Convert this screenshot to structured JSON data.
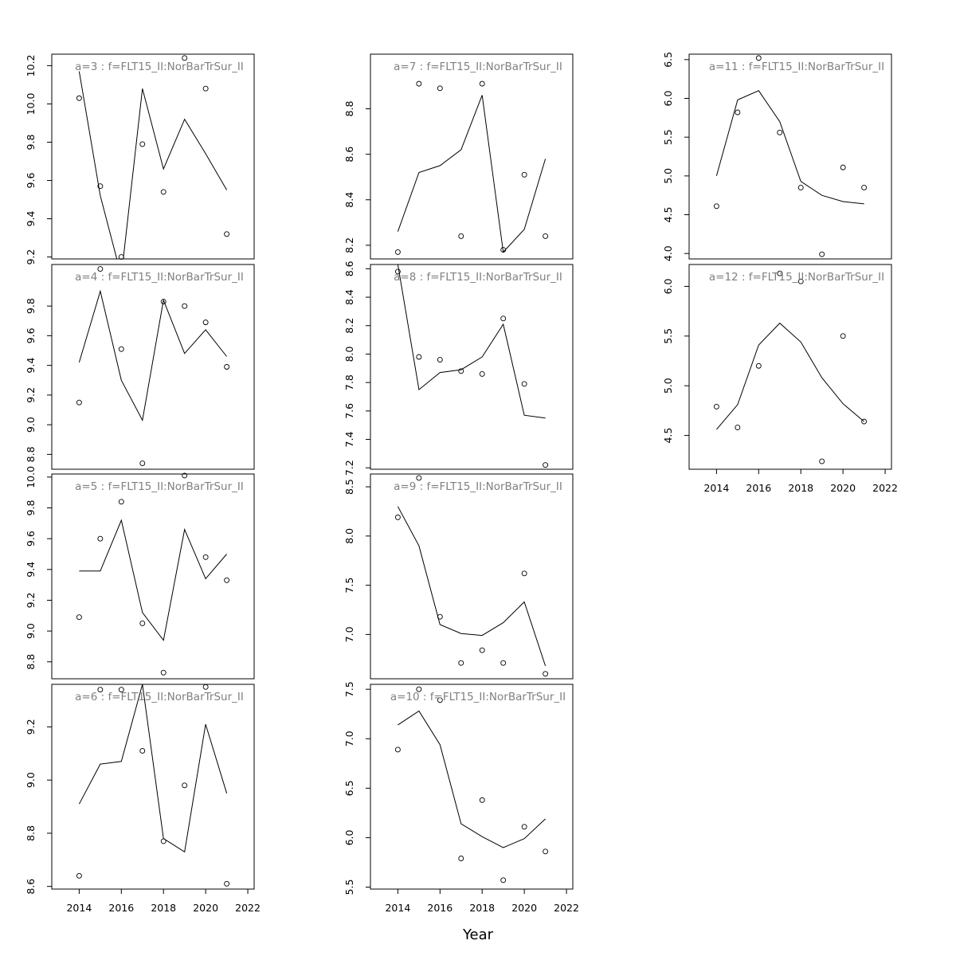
{
  "chart_data": {
    "type": "line",
    "xlabel": "Year",
    "x_ticks": [
      2014,
      2016,
      2018,
      2020,
      2022
    ],
    "xlim": [
      2012.7,
      2022.3
    ],
    "years": [
      2014,
      2015,
      2016,
      2017,
      2018,
      2019,
      2020,
      2021
    ],
    "panels": [
      {
        "title": "a=3  :  f=FLT15_II:NorBarTrSur_II",
        "y_ticks": [
          "9.2",
          "9.4",
          "9.6",
          "9.8",
          "10.0",
          "10.2"
        ],
        "ylim": [
          9.19,
          10.26
        ],
        "fitted": [
          10.17,
          9.52,
          9.1,
          10.08,
          9.66,
          9.92,
          9.74,
          9.55
        ],
        "observed": [
          10.03,
          9.57,
          9.2,
          9.79,
          9.54,
          10.24,
          10.08,
          9.32
        ]
      },
      {
        "title": "a=4  :  f=FLT15_II:NorBarTrSur_II",
        "y_ticks": [
          "8.8",
          "9.0",
          "9.2",
          "9.4",
          "9.6",
          "9.8"
        ],
        "ylim": [
          8.7,
          10.08
        ],
        "fitted": [
          9.42,
          9.9,
          9.3,
          9.03,
          9.84,
          9.48,
          9.64,
          9.46
        ],
        "observed": [
          9.15,
          10.05,
          9.51,
          8.74,
          9.83,
          9.8,
          9.69,
          9.39
        ]
      },
      {
        "title": "a=5  :  f=FLT15_II:NorBarTrSur_II",
        "y_ticks": [
          "8.8",
          "9.0",
          "9.2",
          "9.4",
          "9.6",
          "9.8",
          "10.0"
        ],
        "ylim": [
          8.69,
          10.02
        ],
        "fitted": [
          9.39,
          9.39,
          9.72,
          9.12,
          8.94,
          9.66,
          9.34,
          9.5
        ],
        "observed": [
          9.09,
          9.6,
          9.84,
          9.05,
          8.73,
          10.01,
          9.48,
          9.33
        ]
      },
      {
        "title": "a=6  :  f=FLT15_II:NorBarTrSur_II",
        "y_ticks": [
          "8.6",
          "8.8",
          "9.0",
          "9.2"
        ],
        "ylim": [
          8.59,
          9.36
        ],
        "fitted": [
          8.91,
          9.06,
          9.07,
          9.36,
          8.78,
          8.73,
          9.21,
          8.95
        ],
        "observed": [
          8.64,
          9.34,
          9.34,
          9.11,
          8.77,
          8.98,
          9.35,
          8.61
        ]
      },
      {
        "title": "a=7  :  f=FLT15_II:NorBarTrSur_II",
        "y_ticks": [
          "8.2",
          "8.4",
          "8.6",
          "8.8"
        ],
        "ylim": [
          8.14,
          9.04
        ],
        "fitted": [
          8.26,
          8.52,
          8.55,
          8.62,
          8.86,
          8.17,
          8.27,
          8.58
        ],
        "observed": [
          8.17,
          8.91,
          8.89,
          8.24,
          8.91,
          8.18,
          8.51,
          8.24
        ]
      },
      {
        "title": "a=8  :  f=FLT15_II:NorBarTrSur_II",
        "y_ticks": [
          "7.2",
          "7.4",
          "7.6",
          "7.8",
          "8.0",
          "8.2",
          "8.4",
          "8.6"
        ],
        "ylim": [
          7.19,
          8.63
        ],
        "fitted": [
          8.63,
          7.75,
          7.87,
          7.89,
          7.98,
          8.21,
          7.57,
          7.55
        ],
        "observed": [
          8.58,
          7.98,
          7.96,
          7.88,
          7.86,
          8.25,
          7.79,
          7.22
        ]
      },
      {
        "title": "a=9  :  f=FLT15_II:NorBarTrSur_II",
        "y_ticks": [
          "7.0",
          "7.5",
          "8.0",
          "8.5"
        ],
        "ylim": [
          6.55,
          8.63
        ],
        "fitted": [
          8.3,
          7.9,
          7.1,
          7.01,
          6.99,
          7.12,
          7.33,
          6.68
        ],
        "observed": [
          8.19,
          8.59,
          7.18,
          6.71,
          6.84,
          6.71,
          7.62,
          6.6
        ]
      },
      {
        "title": "a=10  :  f=FLT15_II:NorBarTrSur_II",
        "y_ticks": [
          "5.5",
          "6.0",
          "6.5",
          "7.0",
          "7.5"
        ],
        "ylim": [
          5.48,
          7.55
        ],
        "fitted": [
          7.14,
          7.28,
          6.94,
          6.14,
          6.01,
          5.9,
          5.99,
          6.19
        ],
        "observed": [
          6.89,
          7.5,
          7.39,
          5.79,
          6.38,
          5.57,
          6.11,
          5.86
        ]
      },
      {
        "title": "a=11  :  f=FLT15_II:NorBarTrSur_II",
        "y_ticks": [
          "4.0",
          "4.5",
          "5.0",
          "5.5",
          "6.0",
          "6.5"
        ],
        "ylim": [
          3.93,
          6.57
        ],
        "fitted": [
          5.0,
          5.98,
          6.1,
          5.7,
          4.93,
          4.75,
          4.67,
          4.64
        ],
        "observed": [
          4.61,
          5.82,
          6.52,
          5.56,
          4.85,
          3.99,
          5.11,
          4.85
        ]
      },
      {
        "title": "a=12  :  f=FLT15_II:NorBarTrSur_II",
        "y_ticks": [
          "4.5",
          "5.0",
          "5.5",
          "6.0"
        ],
        "ylim": [
          4.16,
          6.22
        ],
        "fitted": [
          4.56,
          4.81,
          5.41,
          5.63,
          5.44,
          5.08,
          4.82,
          4.64
        ],
        "observed": [
          4.79,
          4.58,
          5.2,
          6.13,
          6.05,
          4.24,
          5.5,
          4.64
        ]
      }
    ]
  }
}
